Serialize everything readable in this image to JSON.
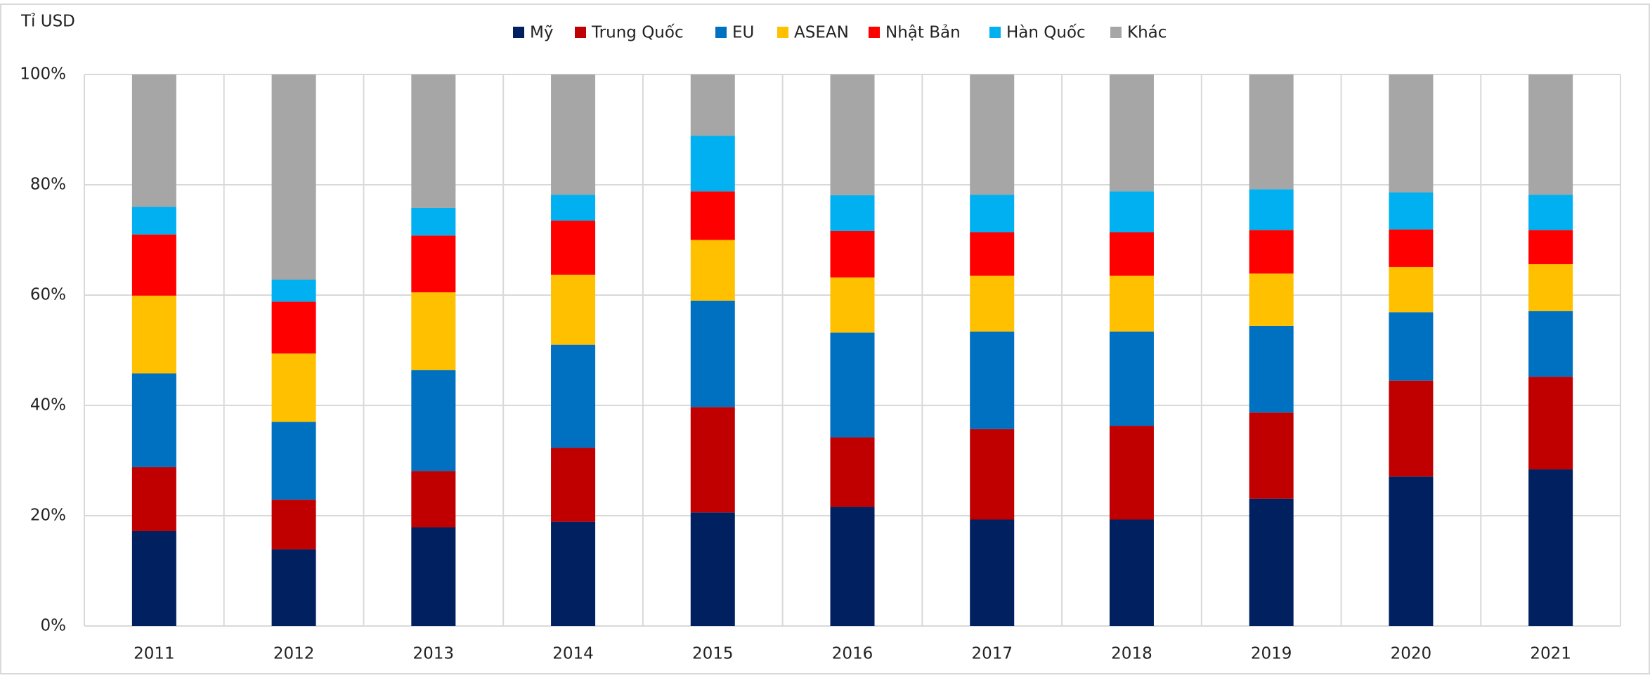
{
  "chart_data": {
    "type": "stacked_bar_100",
    "y_label": "Tỉ USD",
    "categories": [
      "2011",
      "2012",
      "2013",
      "2014",
      "2015",
      "2016",
      "2017",
      "2018",
      "2019",
      "2020",
      "2021"
    ],
    "series": [
      {
        "name": "Mỹ",
        "color": "#002060",
        "values": [
          17.2,
          13.9,
          17.9,
          18.9,
          20.6,
          21.6,
          19.3,
          19.3,
          23.1,
          27.1,
          28.4
        ]
      },
      {
        "name": "Trung Quốc",
        "color": "#c00000",
        "values": [
          11.6,
          9.0,
          10.2,
          13.4,
          19.1,
          12.6,
          16.4,
          17.0,
          15.6,
          17.4,
          16.8
        ]
      },
      {
        "name": "EU",
        "color": "#0070c0",
        "values": [
          17.0,
          14.1,
          18.3,
          18.7,
          19.3,
          19.0,
          17.7,
          17.1,
          15.7,
          12.4,
          11.9
        ]
      },
      {
        "name": "ASEAN",
        "color": "#ffc000",
        "values": [
          14.1,
          12.4,
          14.1,
          12.7,
          11.0,
          10.0,
          10.1,
          10.1,
          9.5,
          8.2,
          8.5
        ]
      },
      {
        "name": "Nhật Bản",
        "color": "#ff0000",
        "values": [
          11.1,
          9.4,
          10.3,
          9.8,
          8.8,
          8.4,
          7.9,
          7.9,
          7.9,
          6.8,
          6.2
        ]
      },
      {
        "name": "Hàn Quốc",
        "color": "#00b0f0",
        "values": [
          5.0,
          4.0,
          5.0,
          4.7,
          10.1,
          6.5,
          6.8,
          7.4,
          7.4,
          6.7,
          6.4
        ]
      },
      {
        "name": "Khác",
        "color": "#a6a6a6",
        "values": [
          24.0,
          37.2,
          24.2,
          21.8,
          11.1,
          21.9,
          21.8,
          21.2,
          20.8,
          21.4,
          21.8
        ]
      }
    ],
    "ylim": [
      0,
      100
    ],
    "yticks": [
      {
        "value": 0,
        "label": "0%"
      },
      {
        "value": 20,
        "label": "20%"
      },
      {
        "value": 40,
        "label": "40%"
      },
      {
        "value": 60,
        "label": "60%"
      },
      {
        "value": 80,
        "label": "80%"
      },
      {
        "value": 100,
        "label": "100%"
      }
    ],
    "grid": true,
    "legend": "top"
  }
}
